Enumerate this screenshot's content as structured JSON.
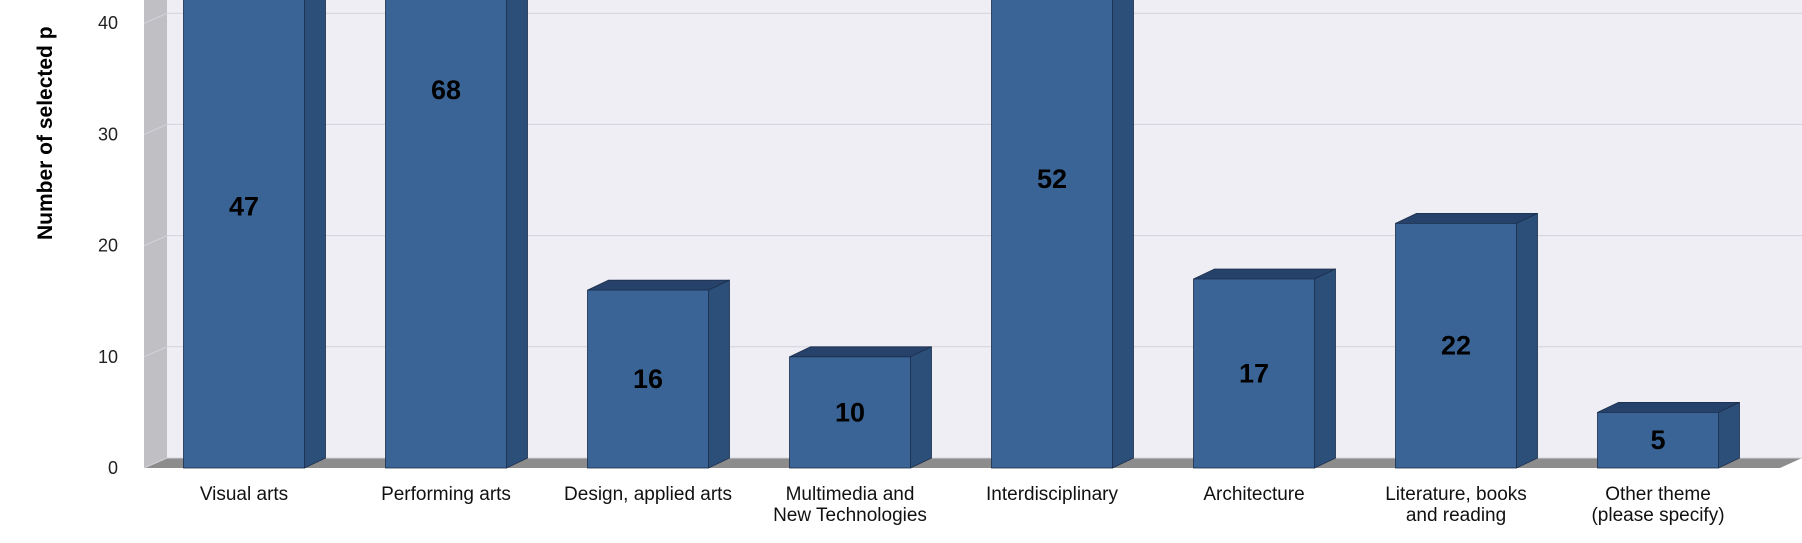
{
  "chart_data": {
    "type": "bar3d",
    "y_axis_label": "Number of selected p",
    "categories": [
      "Visual arts",
      "Performing arts",
      "Design, applied arts",
      "Multimedia and New Technologies",
      "Interdisciplinary",
      "Architecture",
      "Literature, books and reading",
      "Other theme (please specify)"
    ],
    "values": [
      47,
      68,
      16,
      10,
      52,
      17,
      22,
      5
    ],
    "color": "#3a6496",
    "ylim": [
      0,
      42
    ],
    "yticks": [
      0,
      10,
      20,
      30,
      40
    ],
    "grid": true
  }
}
